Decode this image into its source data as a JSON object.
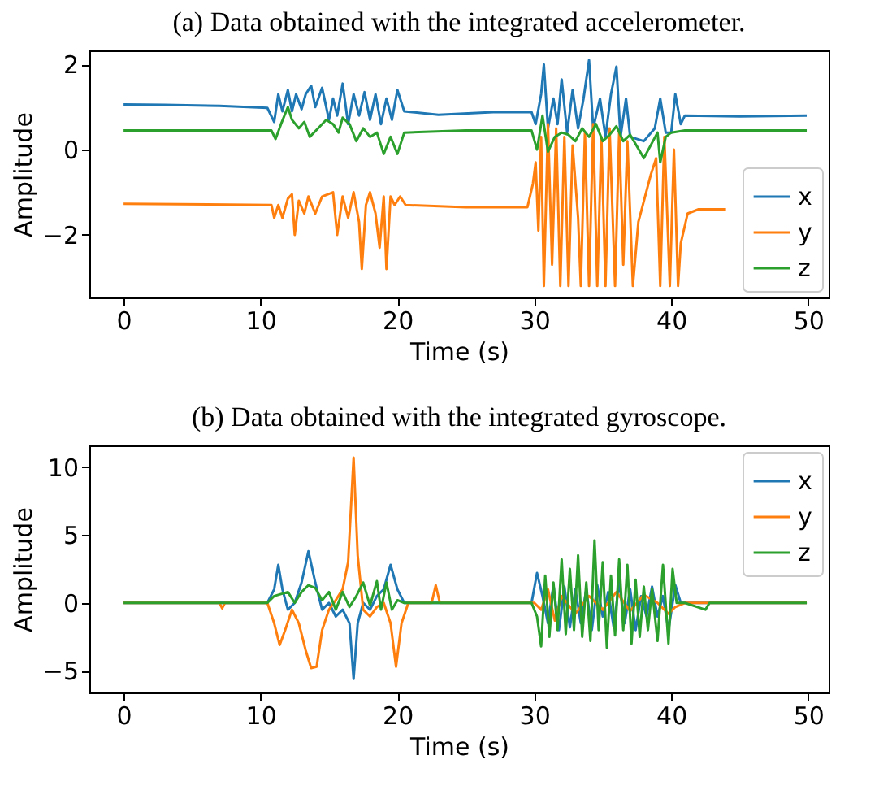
{
  "chart_data": [
    {
      "type": "line",
      "title": "(a) Data obtained with the integrated accelerometer.",
      "xlabel": "Time (s)",
      "ylabel": "Amplitude",
      "xlim": [
        -2.5,
        51.5
      ],
      "ylim": [
        -3.47,
        2.33
      ],
      "xticks": [
        0,
        10,
        20,
        30,
        40,
        50
      ],
      "yticks": [
        -2,
        0,
        2
      ],
      "grid": false,
      "legend": "bottom right",
      "series": [
        {
          "name": "x",
          "color": "#1f77b4",
          "x": [
            0,
            3,
            7,
            10.5,
            11,
            11.3,
            11.6,
            12,
            12.3,
            12.6,
            13,
            13.3,
            13.7,
            14,
            14.5,
            15,
            15.3,
            15.6,
            16,
            16.4,
            16.8,
            17.2,
            17.6,
            18,
            18.4,
            18.8,
            19.2,
            19.6,
            20,
            20.5,
            23,
            27,
            29.8,
            30.1,
            30.5,
            30.7,
            31,
            31.4,
            31.7,
            32,
            32.4,
            32.8,
            33.2,
            33.6,
            34,
            34.3,
            34.8,
            35.2,
            35.6,
            36,
            36.3,
            36.7,
            37,
            38,
            38.8,
            39.2,
            39.6,
            40,
            40.3,
            40.7,
            41,
            45,
            49.9
          ],
          "values": [
            1.06,
            1.05,
            1.03,
            0.98,
            0.65,
            1.3,
            0.9,
            1.4,
            0.9,
            1.3,
            0.95,
            1.3,
            1.5,
            1.0,
            1.45,
            0.7,
            1.2,
            0.8,
            1.55,
            0.6,
            1.3,
            0.8,
            1.35,
            0.7,
            1.3,
            0.6,
            1.2,
            0.7,
            1.4,
            0.9,
            0.82,
            0.88,
            0.88,
            0.6,
            1.3,
            2.0,
            0.5,
            1.2,
            0.6,
            1.65,
            0.4,
            1.4,
            0.5,
            1.2,
            2.1,
            0.5,
            1.2,
            0.3,
            1.3,
            1.95,
            0.3,
            1.2,
            0.3,
            0.2,
            0.5,
            1.2,
            0.4,
            0.4,
            1.3,
            0.6,
            0.8,
            0.78,
            0.8
          ]
        },
        {
          "name": "y",
          "color": "#ff7f0e",
          "x": [
            0,
            10.8,
            11,
            11.3,
            11.6,
            12,
            12.3,
            12.5,
            12.8,
            13.2,
            13.5,
            14,
            14.5,
            15.3,
            15.6,
            16,
            16.4,
            16.8,
            17.2,
            17.4,
            17.7,
            18,
            18.4,
            18.7,
            19,
            19.2,
            19.5,
            19.8,
            20.2,
            20.6,
            25,
            29.5,
            29.9,
            30.1,
            30.3,
            30.5,
            30.7,
            31,
            31.3,
            31.6,
            31.9,
            32.2,
            32.5,
            32.8,
            33.2,
            33.4,
            33.7,
            34,
            34.3,
            34.6,
            34.9,
            35.2,
            35.5,
            35.9,
            36.2,
            36.5,
            36.8,
            37.2,
            37.6,
            38.5,
            38.9,
            39.2,
            39.5,
            39.9,
            40.2,
            40.5,
            40.7,
            41.2,
            42,
            44
          ],
          "values": [
            -1.27,
            -1.3,
            -1.6,
            -1.3,
            -1.6,
            -1.15,
            -1.05,
            -2.0,
            -1.2,
            -1.5,
            -1.1,
            -1.5,
            -1.1,
            -1.0,
            -2.0,
            -1.1,
            -1.6,
            -1.0,
            -1.7,
            -2.8,
            -1.3,
            -1.0,
            -1.5,
            -2.3,
            -1.1,
            -2.8,
            -1.1,
            -1.3,
            -1.1,
            -1.3,
            -1.35,
            -1.35,
            -0.8,
            -0.3,
            -1.9,
            0.3,
            -3.2,
            0.6,
            -2.7,
            0.5,
            -3.2,
            0.3,
            -3.2,
            0.1,
            -1.6,
            -3.2,
            0.4,
            -3.2,
            0.6,
            -3.2,
            0.3,
            -3.2,
            0.5,
            -3.2,
            0.4,
            -2.7,
            0.2,
            -3.2,
            -1.7,
            -0.6,
            -0.2,
            -3.2,
            0.3,
            -3.2,
            0.0,
            -3.2,
            -2.2,
            -1.5,
            -1.4,
            -1.4
          ]
        },
        {
          "name": "z",
          "color": "#2ca02c",
          "x": [
            0,
            10.8,
            11.1,
            11.5,
            12,
            12.3,
            12.8,
            13.2,
            13.6,
            14.2,
            14.8,
            15.3,
            15.7,
            16,
            16.5,
            17,
            17.5,
            18,
            18.5,
            19,
            19.5,
            20,
            20.5,
            25,
            29.8,
            30.2,
            30.6,
            31,
            31.5,
            32,
            32.5,
            33,
            33.5,
            34,
            34.5,
            35,
            35.5,
            36,
            36.5,
            37,
            38,
            39,
            39.2,
            39.6,
            40,
            41,
            49.9
          ],
          "values": [
            0.45,
            0.45,
            0.25,
            0.6,
            1.0,
            0.7,
            0.5,
            0.65,
            0.3,
            0.5,
            0.7,
            0.6,
            0.4,
            0.75,
            0.6,
            0.2,
            0.5,
            0.3,
            0.4,
            -0.1,
            0.3,
            -0.1,
            0.4,
            0.45,
            0.45,
            0.0,
            0.8,
            -0.05,
            0.3,
            0.4,
            0.35,
            0.2,
            0.5,
            0.3,
            0.6,
            0.2,
            0.35,
            0.55,
            0.2,
            0.35,
            -0.2,
            0.4,
            -0.3,
            0.3,
            0.4,
            0.45,
            0.45
          ]
        }
      ]
    },
    {
      "type": "line",
      "title": "(b) Data obtained with the integrated gyroscope.",
      "xlabel": "Time (s)",
      "ylabel": "Amplitude",
      "xlim": [
        -2.5,
        51.5
      ],
      "ylim": [
        -6.6,
        11.6
      ],
      "xticks": [
        0,
        10,
        20,
        30,
        40,
        50
      ],
      "yticks": [
        -5,
        0,
        5,
        10
      ],
      "grid": false,
      "legend": "top right",
      "series": [
        {
          "name": "x",
          "color": "#1f77b4",
          "x": [
            0,
            10.5,
            11,
            11.3,
            11.6,
            12,
            12.5,
            13,
            13.5,
            14,
            14.5,
            15,
            15.5,
            16,
            16.5,
            16.8,
            17.1,
            17.5,
            18,
            18.5,
            19,
            19.5,
            20,
            20.5,
            25,
            29.8,
            30.2,
            30.6,
            31,
            31.4,
            31.8,
            32.2,
            32.6,
            33,
            33.4,
            33.8,
            34.2,
            34.6,
            35,
            35.4,
            35.8,
            36.2,
            36.6,
            37,
            37.4,
            37.8,
            38.2,
            38.6,
            39,
            39.4,
            39.8,
            40.3,
            40.7,
            45,
            49.9
          ],
          "values": [
            0,
            0,
            1.0,
            2.8,
            1.0,
            -0.5,
            0,
            1.5,
            3.8,
            1.5,
            -0.5,
            0,
            -1.0,
            -0.5,
            -1.5,
            -5.6,
            -1.5,
            0,
            -0.5,
            0.5,
            1.0,
            2.8,
            1.0,
            0,
            0,
            0,
            2.2,
            0.5,
            -1.5,
            1.3,
            -2.0,
            1.2,
            -1.8,
            1.0,
            -1.5,
            1.0,
            -2.0,
            1.3,
            -1.0,
            0.8,
            -1.8,
            1.5,
            -1.5,
            1.0,
            -2.0,
            0.5,
            -1.0,
            1.2,
            -1.0,
            0.5,
            -2.0,
            1.3,
            0,
            0,
            0
          ]
        },
        {
          "name": "y",
          "color": "#ff7f0e",
          "x": [
            0,
            7,
            7.2,
            7.4,
            10.5,
            11,
            11.4,
            11.8,
            12.3,
            12.8,
            13.3,
            13.7,
            14.1,
            14.5,
            15,
            15.5,
            16,
            16.4,
            16.8,
            17.1,
            17.5,
            18,
            18.5,
            19,
            19.5,
            19.9,
            20.3,
            20.8,
            22.5,
            22.8,
            23.1,
            25,
            30,
            30.5,
            31,
            31.5,
            32,
            33,
            34,
            35,
            36,
            37,
            38,
            39,
            39.8,
            40.3,
            41,
            45,
            49.9
          ],
          "values": [
            0,
            0,
            -0.4,
            0,
            0,
            -1.5,
            -3.1,
            -2.0,
            -0.5,
            -1.5,
            -3.5,
            -4.8,
            -4.7,
            -2.0,
            -0.5,
            0.2,
            1.0,
            3.0,
            10.7,
            3.5,
            -0.5,
            -1.0,
            -0.3,
            0,
            -1.5,
            -4.7,
            -1.5,
            0,
            0,
            1.3,
            0,
            0,
            0,
            -0.5,
            1.0,
            -1.3,
            0.5,
            -0.8,
            0.5,
            -0.5,
            0.8,
            -0.6,
            0.6,
            0,
            -0.8,
            -0.3,
            0,
            0,
            0
          ]
        },
        {
          "name": "z",
          "color": "#2ca02c",
          "x": [
            0,
            10.5,
            11,
            12,
            12.5,
            13,
            13.5,
            14,
            14.5,
            15,
            15.5,
            16,
            16.5,
            17,
            17.5,
            18,
            18.5,
            18.8,
            19.2,
            19.6,
            20,
            20.5,
            29.8,
            30.2,
            30.5,
            30.8,
            31.1,
            31.4,
            31.7,
            32,
            32.3,
            32.6,
            32.9,
            33.2,
            33.5,
            33.8,
            34.1,
            34.4,
            34.7,
            35,
            35.3,
            35.6,
            35.9,
            36.2,
            36.5,
            36.8,
            37.1,
            37.4,
            37.7,
            38,
            38.3,
            38.6,
            39,
            39.4,
            39.8,
            40.1,
            40.4,
            41,
            42.5,
            42.8,
            49.9
          ],
          "values": [
            0,
            0,
            0.5,
            0.8,
            0,
            0.8,
            1.3,
            1.1,
            0.2,
            0.8,
            -0.5,
            0.8,
            -0.3,
            0.5,
            1.5,
            -0.2,
            1.6,
            -0.5,
            1.5,
            -0.5,
            0.2,
            0,
            0,
            -1.0,
            -3.2,
            2.0,
            -2.5,
            1.5,
            -2.0,
            3.2,
            -2.3,
            2.5,
            -2.0,
            3.5,
            -2.5,
            1.5,
            -2.8,
            4.6,
            -2.0,
            3.0,
            -3.3,
            2.0,
            -2.4,
            3.2,
            -2.0,
            2.8,
            -3.0,
            1.7,
            -2.5,
            1.2,
            -2.0,
            1.0,
            -2.8,
            2.8,
            -3.0,
            2.5,
            0,
            0,
            -0.5,
            0,
            0
          ]
        }
      ]
    }
  ]
}
